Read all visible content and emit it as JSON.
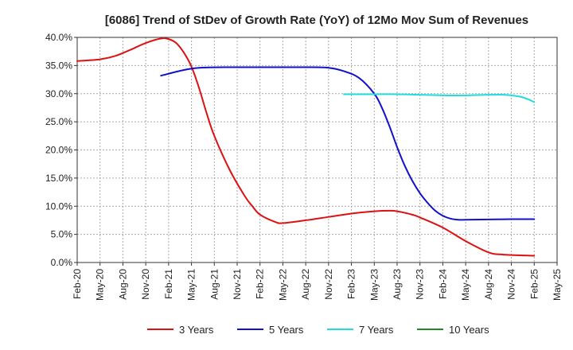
{
  "chart_data": {
    "type": "line",
    "title": "[6086]  Trend of StDev of Growth Rate (YoY) of 12Mo Mov Sum of Revenues",
    "xlabel": "",
    "ylabel": "",
    "ylim": [
      0,
      40
    ],
    "yticks": [
      0,
      5,
      10,
      15,
      20,
      25,
      30,
      35,
      40
    ],
    "ytick_labels": [
      "0.0%",
      "5.0%",
      "10.0%",
      "15.0%",
      "20.0%",
      "25.0%",
      "30.0%",
      "35.0%",
      "40.0%"
    ],
    "x_range": [
      0,
      63
    ],
    "xtick_positions": [
      0,
      3,
      6,
      9,
      12,
      15,
      18,
      21,
      24,
      27,
      30,
      33,
      36,
      39,
      42,
      45,
      48,
      51,
      54,
      57,
      60,
      63
    ],
    "xtick_labels": [
      "Feb-20",
      "May-20",
      "Aug-20",
      "Nov-20",
      "Feb-21",
      "May-21",
      "Aug-21",
      "Nov-21",
      "Feb-22",
      "May-22",
      "Aug-22",
      "Nov-22",
      "Feb-23",
      "May-23",
      "Aug-23",
      "Nov-23",
      "Feb-24",
      "May-24",
      "Aug-24",
      "Nov-24",
      "Feb-25",
      "May-25"
    ],
    "grid": true,
    "legend_position": "bottom",
    "series": [
      {
        "name": "3 Years",
        "color": "#dd1111",
        "points": [
          [
            0,
            35.8
          ],
          [
            3,
            36.1
          ],
          [
            5,
            36.7
          ],
          [
            7,
            37.8
          ],
          [
            9,
            39.0
          ],
          [
            11,
            39.8
          ],
          [
            12,
            39.7
          ],
          [
            13,
            39.0
          ],
          [
            14,
            37.3
          ],
          [
            15,
            34.8
          ],
          [
            16,
            31.0
          ],
          [
            17,
            26.5
          ],
          [
            18,
            22.5
          ],
          [
            20,
            16.5
          ],
          [
            22,
            11.8
          ],
          [
            23,
            10.0
          ],
          [
            24,
            8.5
          ],
          [
            26,
            7.2
          ],
          [
            27,
            7.0
          ],
          [
            30,
            7.5
          ],
          [
            33,
            8.1
          ],
          [
            36,
            8.7
          ],
          [
            39,
            9.1
          ],
          [
            41,
            9.2
          ],
          [
            42,
            9.1
          ],
          [
            44,
            8.5
          ],
          [
            45,
            8.0
          ],
          [
            48,
            6.2
          ],
          [
            51,
            3.8
          ],
          [
            54,
            1.8
          ],
          [
            56,
            1.4
          ],
          [
            60,
            1.2
          ]
        ]
      },
      {
        "name": "5 Years",
        "color": "#1111cc",
        "points": [
          [
            11,
            33.2
          ],
          [
            14,
            34.2
          ],
          [
            16,
            34.6
          ],
          [
            20,
            34.7
          ],
          [
            25,
            34.7
          ],
          [
            30,
            34.7
          ],
          [
            33,
            34.6
          ],
          [
            35,
            34.0
          ],
          [
            37,
            32.8
          ],
          [
            39,
            30.0
          ],
          [
            40,
            27.5
          ],
          [
            41,
            24.2
          ],
          [
            42,
            20.5
          ],
          [
            43,
            17.2
          ],
          [
            44,
            14.5
          ],
          [
            45,
            12.3
          ],
          [
            46,
            10.6
          ],
          [
            47,
            9.2
          ],
          [
            48,
            8.3
          ],
          [
            49,
            7.8
          ],
          [
            50,
            7.6
          ],
          [
            51,
            7.6
          ],
          [
            54,
            7.65
          ],
          [
            57,
            7.7
          ],
          [
            60,
            7.7
          ]
        ]
      },
      {
        "name": "7 Years",
        "color": "#22dddd",
        "points": [
          [
            35,
            29.9
          ],
          [
            39,
            29.9
          ],
          [
            42,
            29.9
          ],
          [
            45,
            29.8
          ],
          [
            48,
            29.7
          ],
          [
            51,
            29.7
          ],
          [
            54,
            29.8
          ],
          [
            56,
            29.8
          ],
          [
            58,
            29.5
          ],
          [
            59,
            29.1
          ],
          [
            60,
            28.5
          ]
        ]
      },
      {
        "name": "10 Years",
        "color": "#228822",
        "points": []
      }
    ]
  }
}
